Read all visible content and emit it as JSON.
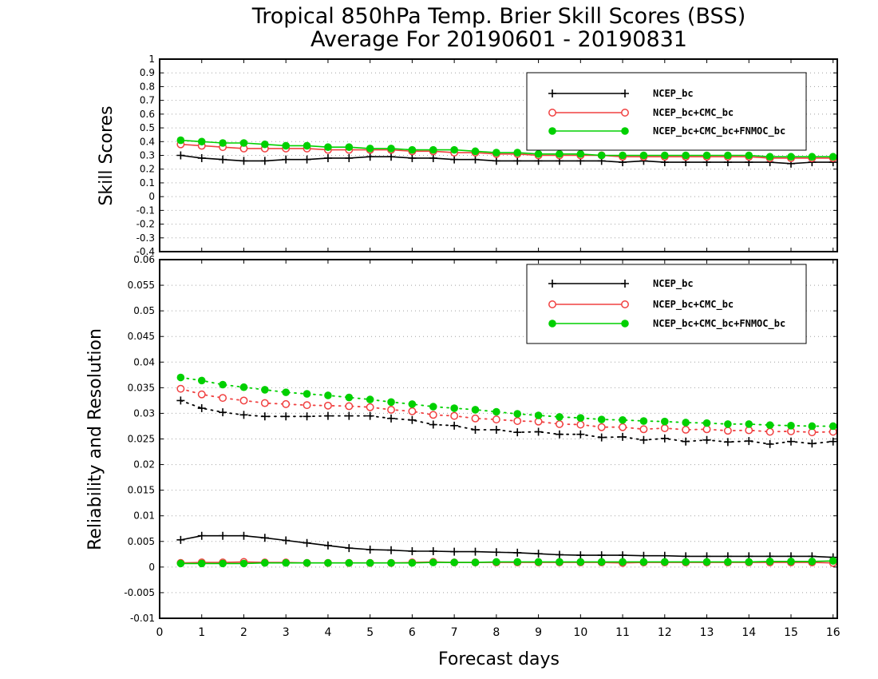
{
  "chart_data": [
    {
      "type": "line",
      "title": "Tropical 850hPa Temp. Brier Skill Scores (BSS)",
      "subtitle": "Average For 20190601 - 20190831",
      "ylabel": "Skill Scores",
      "xlabel": "",
      "xlim": [
        0,
        16.1
      ],
      "ylim": [
        -0.4,
        1.0
      ],
      "yticks": [
        "-0.4",
        "-0.3",
        "-0.2",
        "-0.1",
        "0",
        "0.1",
        "0.2",
        "0.3",
        "0.4",
        "0.5",
        "0.6",
        "0.7",
        "0.8",
        "0.9",
        "1"
      ],
      "grid": true,
      "legend_position": "top-right",
      "x": [
        0.5,
        1,
        1.5,
        2,
        2.5,
        3,
        3.5,
        4,
        4.5,
        5,
        5.5,
        6,
        6.5,
        7,
        7.5,
        8,
        8.5,
        9,
        9.5,
        10,
        10.5,
        11,
        11.5,
        12,
        12.5,
        13,
        13.5,
        14,
        14.5,
        15,
        15.5,
        16
      ],
      "series": [
        {
          "name": "NCEP_bc",
          "color": "#000000",
          "marker": "plus",
          "values": [
            0.3,
            0.28,
            0.27,
            0.26,
            0.26,
            0.27,
            0.27,
            0.28,
            0.28,
            0.29,
            0.29,
            0.28,
            0.28,
            0.27,
            0.27,
            0.26,
            0.26,
            0.26,
            0.26,
            0.26,
            0.26,
            0.25,
            0.26,
            0.25,
            0.25,
            0.25,
            0.25,
            0.25,
            0.25,
            0.24,
            0.25,
            0.25
          ]
        },
        {
          "name": "NCEP_bc+CMC_bc",
          "color": "#f04040",
          "marker": "open-circle",
          "values": [
            0.38,
            0.37,
            0.36,
            0.35,
            0.35,
            0.35,
            0.35,
            0.34,
            0.34,
            0.34,
            0.34,
            0.33,
            0.33,
            0.32,
            0.32,
            0.31,
            0.31,
            0.3,
            0.3,
            0.3,
            0.3,
            0.29,
            0.29,
            0.29,
            0.29,
            0.29,
            0.29,
            0.29,
            0.28,
            0.28,
            0.28,
            0.28
          ]
        },
        {
          "name": "NCEP_bc+CMC_bc+FNMOC_bc",
          "color": "#00d000",
          "marker": "filled-circle",
          "values": [
            0.41,
            0.4,
            0.39,
            0.39,
            0.38,
            0.37,
            0.37,
            0.36,
            0.36,
            0.35,
            0.35,
            0.34,
            0.34,
            0.34,
            0.33,
            0.32,
            0.32,
            0.31,
            0.31,
            0.31,
            0.3,
            0.3,
            0.3,
            0.3,
            0.3,
            0.3,
            0.3,
            0.3,
            0.29,
            0.29,
            0.29,
            0.29
          ]
        }
      ]
    },
    {
      "type": "line",
      "title": "",
      "ylabel": "Reliability and Resolution",
      "xlabel": "Forecast days",
      "xlim": [
        0,
        16.1
      ],
      "ylim": [
        -0.01,
        0.06
      ],
      "yticks": [
        "-0.01",
        "-0.005",
        "0",
        "0.005",
        "0.01",
        "0.015",
        "0.02",
        "0.025",
        "0.03",
        "0.035",
        "0.04",
        "0.045",
        "0.05",
        "0.055",
        "0.06"
      ],
      "xticks": [
        "0",
        "1",
        "2",
        "3",
        "4",
        "5",
        "6",
        "7",
        "8",
        "9",
        "10",
        "11",
        "12",
        "13",
        "14",
        "15",
        "16"
      ],
      "grid": true,
      "legend_position": "top-right",
      "x": [
        0.5,
        1,
        1.5,
        2,
        2.5,
        3,
        3.5,
        4,
        4.5,
        5,
        5.5,
        6,
        6.5,
        7,
        7.5,
        8,
        8.5,
        9,
        9.5,
        10,
        10.5,
        11,
        11.5,
        12,
        12.5,
        13,
        13.5,
        14,
        14.5,
        15,
        15.5,
        16
      ],
      "series": [
        {
          "name": "NCEP_bc",
          "color": "#000000",
          "marker": "plus",
          "resolution": [
            0.0325,
            0.031,
            0.0302,
            0.0297,
            0.0294,
            0.0294,
            0.0294,
            0.0295,
            0.0295,
            0.0295,
            0.029,
            0.0287,
            0.0278,
            0.0276,
            0.0268,
            0.0268,
            0.0263,
            0.0264,
            0.0259,
            0.0259,
            0.0253,
            0.0254,
            0.0248,
            0.0251,
            0.0245,
            0.0248,
            0.0244,
            0.0246,
            0.024,
            0.0245,
            0.0241,
            0.0245
          ],
          "reliability": [
            0.0053,
            0.0061,
            0.0061,
            0.0061,
            0.0057,
            0.0052,
            0.0047,
            0.0042,
            0.0037,
            0.0034,
            0.0033,
            0.0031,
            0.0031,
            0.003,
            0.003,
            0.0029,
            0.0028,
            0.0026,
            0.0024,
            0.0023,
            0.0023,
            0.0023,
            0.0022,
            0.0022,
            0.0021,
            0.0021,
            0.0021,
            0.0021,
            0.0021,
            0.0021,
            0.0021,
            0.0019
          ]
        },
        {
          "name": "NCEP_bc+CMC_bc",
          "color": "#f04040",
          "marker": "open-circle",
          "resolution": [
            0.0348,
            0.0337,
            0.033,
            0.0325,
            0.032,
            0.0318,
            0.0316,
            0.0315,
            0.0314,
            0.0312,
            0.0307,
            0.0304,
            0.0297,
            0.0295,
            0.029,
            0.0288,
            0.0285,
            0.0284,
            0.0279,
            0.0278,
            0.0273,
            0.0273,
            0.0269,
            0.0271,
            0.0268,
            0.0269,
            0.0266,
            0.0267,
            0.0264,
            0.0265,
            0.0263,
            0.0264
          ],
          "reliability": [
            0.0008,
            0.0009,
            0.0009,
            0.001,
            0.0009,
            0.0009,
            0.0008,
            0.0008,
            0.0008,
            0.0008,
            0.0008,
            0.0009,
            0.001,
            0.0009,
            0.0009,
            0.0009,
            0.0009,
            0.0009,
            0.0009,
            0.0009,
            0.0009,
            0.0008,
            0.0009,
            0.0009,
            0.0009,
            0.0009,
            0.0009,
            0.0009,
            0.0009,
            0.0009,
            0.0009,
            0.0008
          ]
        },
        {
          "name": "NCEP_bc+CMC_bc+FNMOC_bc",
          "color": "#00d000",
          "marker": "filled-circle",
          "resolution": [
            0.037,
            0.0364,
            0.0356,
            0.0351,
            0.0346,
            0.0341,
            0.0338,
            0.0335,
            0.0331,
            0.0327,
            0.0322,
            0.0318,
            0.0313,
            0.031,
            0.0307,
            0.0303,
            0.0299,
            0.0296,
            0.0293,
            0.0291,
            0.0288,
            0.0287,
            0.0285,
            0.0284,
            0.0282,
            0.0281,
            0.0279,
            0.0279,
            0.0277,
            0.0276,
            0.0275,
            0.0275
          ],
          "reliability": [
            0.0007,
            0.0007,
            0.0007,
            0.0007,
            0.0008,
            0.0008,
            0.0008,
            0.0008,
            0.0008,
            0.0008,
            0.0008,
            0.0008,
            0.0009,
            0.0009,
            0.0009,
            0.001,
            0.001,
            0.001,
            0.001,
            0.001,
            0.001,
            0.001,
            0.001,
            0.001,
            0.001,
            0.001,
            0.001,
            0.001,
            0.0011,
            0.0011,
            0.0011,
            0.0012
          ]
        }
      ]
    }
  ]
}
